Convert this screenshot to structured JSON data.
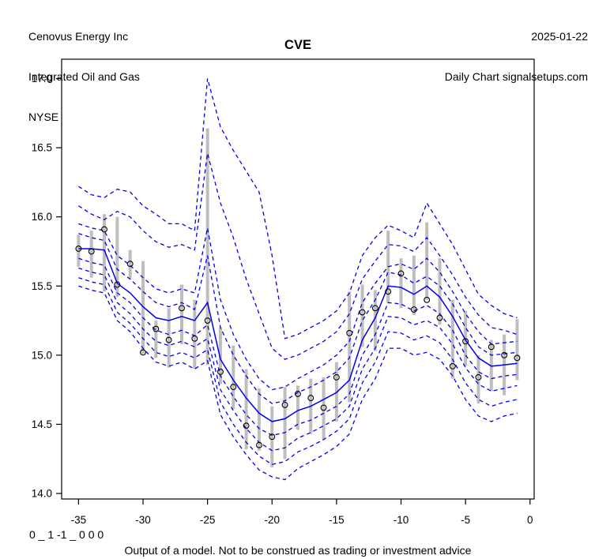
{
  "header": {
    "company": "Cenovus Energy Inc",
    "industry": "Integrated Oil and Gas",
    "exchange": "NYSE",
    "date": "2025-01-22",
    "source": "Daily Chart signalsetups.com"
  },
  "title": "CVE",
  "footer": {
    "signal_code": "0 _ 1 -1 _ 0 0 0",
    "disclaimer": "Output of a model. Not to be construed as trading or investment advice"
  },
  "colors": {
    "band_line": "#0000EE",
    "median_line": "#0000EE",
    "range_bar": "#BEBEBE",
    "point_stroke": "#000000",
    "axis": "#000000",
    "background": "#FFFFFF"
  },
  "chart_data": {
    "type": "line",
    "title": "CVE",
    "xlabel": "",
    "ylabel": "",
    "grid": false,
    "legend": "none",
    "xlim": [
      -36.31,
      0.32
    ],
    "ylim": [
      13.96,
      17.14
    ],
    "x_ticks": [
      {
        "value": -35,
        "label": "-35"
      },
      {
        "value": -30,
        "label": "-30"
      },
      {
        "value": -25,
        "label": "-25"
      },
      {
        "value": -20,
        "label": "-20"
      },
      {
        "value": -15,
        "label": "-15"
      },
      {
        "value": -10,
        "label": "-10"
      },
      {
        "value": -5,
        "label": "-5"
      },
      {
        "value": 0,
        "label": "0"
      }
    ],
    "y_ticks": [
      {
        "value": 14.0,
        "label": "14.0"
      },
      {
        "value": 14.5,
        "label": "14.5"
      },
      {
        "value": 15.0,
        "label": "15.0"
      },
      {
        "value": 15.5,
        "label": "15.5"
      },
      {
        "value": 16.0,
        "label": "16.0"
      },
      {
        "value": 16.5,
        "label": "16.5"
      },
      {
        "value": 17.0,
        "label": "17.0"
      }
    ],
    "x": [
      -35,
      -34,
      -33,
      -32,
      -31,
      -30,
      -29,
      -28,
      -27,
      -26,
      -25,
      -24,
      -23,
      -22,
      -21,
      -20,
      -19,
      -18,
      -17,
      -16,
      -15,
      -14,
      -13,
      -12,
      -11,
      -10,
      -9,
      -8,
      -7,
      -6,
      -5,
      -4,
      -3,
      -2,
      -1
    ],
    "series": [
      {
        "name": "upper-band-4",
        "style": "dashed",
        "values": [
          16.22,
          16.16,
          16.14,
          16.2,
          16.18,
          16.08,
          16.02,
          15.95,
          15.95,
          15.9,
          17.0,
          16.65,
          16.48,
          16.33,
          16.18,
          15.72,
          15.12,
          15.15,
          15.2,
          15.25,
          15.32,
          15.45,
          15.72,
          15.85,
          15.94,
          15.9,
          15.85,
          16.1,
          15.95,
          15.8,
          15.62,
          15.44,
          15.36,
          15.3,
          15.27
        ]
      },
      {
        "name": "upper-band-3",
        "style": "dashed",
        "values": [
          16.08,
          16.02,
          15.98,
          16.04,
          16.0,
          15.9,
          15.82,
          15.78,
          15.8,
          15.76,
          16.46,
          16.1,
          15.85,
          15.55,
          15.3,
          15.05,
          14.97,
          15.0,
          15.05,
          15.1,
          15.17,
          15.3,
          15.55,
          15.68,
          15.8,
          15.79,
          15.75,
          15.85,
          15.72,
          15.58,
          15.42,
          15.29,
          15.2,
          15.18,
          15.15
        ]
      },
      {
        "name": "upper-band-2",
        "style": "dashed",
        "values": [
          15.95,
          15.92,
          15.9,
          15.72,
          15.65,
          15.56,
          15.48,
          15.45,
          15.48,
          15.45,
          15.92,
          15.4,
          15.15,
          14.97,
          14.83,
          14.75,
          14.77,
          14.83,
          14.88,
          14.93,
          15.0,
          15.1,
          15.38,
          15.52,
          15.64,
          15.66,
          15.62,
          15.7,
          15.6,
          15.46,
          15.3,
          15.17,
          15.08,
          15.09,
          15.1
        ]
      },
      {
        "name": "upper-band-1",
        "style": "dashed",
        "values": [
          15.88,
          15.85,
          15.83,
          15.62,
          15.55,
          15.46,
          15.38,
          15.35,
          15.38,
          15.33,
          15.72,
          15.2,
          15.0,
          14.85,
          14.72,
          14.65,
          14.67,
          14.73,
          14.77,
          14.82,
          14.88,
          14.98,
          15.25,
          15.4,
          15.6,
          15.58,
          15.52,
          15.57,
          15.5,
          15.37,
          15.2,
          15.06,
          15.0,
          15.01,
          15.02
        ]
      },
      {
        "name": "median",
        "style": "solid",
        "values": [
          15.77,
          15.77,
          15.76,
          15.52,
          15.45,
          15.35,
          15.27,
          15.25,
          15.28,
          15.25,
          15.38,
          14.97,
          14.82,
          14.69,
          14.58,
          14.52,
          14.54,
          14.6,
          14.63,
          14.68,
          14.73,
          14.82,
          15.11,
          15.27,
          15.5,
          15.49,
          15.44,
          15.5,
          15.42,
          15.28,
          15.11,
          14.98,
          14.92,
          14.93,
          14.94
        ]
      },
      {
        "name": "lower-band-1",
        "style": "dashed",
        "values": [
          15.7,
          15.67,
          15.65,
          15.45,
          15.38,
          15.27,
          15.18,
          15.15,
          15.18,
          15.14,
          15.22,
          14.85,
          14.7,
          14.57,
          14.47,
          14.42,
          14.44,
          14.5,
          14.53,
          14.58,
          14.63,
          14.72,
          15.0,
          15.15,
          15.38,
          15.37,
          15.32,
          15.36,
          15.3,
          15.18,
          15.0,
          14.88,
          14.83,
          14.85,
          14.86
        ]
      },
      {
        "name": "lower-band-2",
        "style": "dashed",
        "values": [
          15.63,
          15.6,
          15.58,
          15.38,
          15.3,
          15.19,
          15.1,
          15.07,
          15.1,
          15.06,
          15.12,
          14.75,
          14.6,
          14.47,
          14.37,
          14.31,
          14.33,
          14.4,
          14.44,
          14.49,
          14.54,
          14.63,
          14.9,
          15.05,
          15.28,
          15.27,
          15.22,
          15.25,
          15.2,
          15.08,
          14.91,
          14.79,
          14.74,
          14.76,
          14.78
        ]
      },
      {
        "name": "lower-band-3",
        "style": "dashed",
        "values": [
          15.56,
          15.53,
          15.51,
          15.31,
          15.23,
          15.12,
          15.02,
          14.99,
          15.02,
          14.98,
          15.04,
          14.66,
          14.5,
          14.37,
          14.27,
          14.21,
          14.23,
          14.3,
          14.34,
          14.39,
          14.45,
          14.54,
          14.8,
          14.95,
          15.17,
          15.16,
          15.11,
          15.14,
          15.09,
          14.97,
          14.8,
          14.68,
          14.63,
          14.66,
          14.68
        ]
      },
      {
        "name": "lower-band-4",
        "style": "dashed",
        "values": [
          15.5,
          15.47,
          15.45,
          15.25,
          15.17,
          15.05,
          14.95,
          14.92,
          14.95,
          14.9,
          14.96,
          14.57,
          14.41,
          14.28,
          14.17,
          14.12,
          14.1,
          14.18,
          14.23,
          14.28,
          14.34,
          14.43,
          14.68,
          14.83,
          15.05,
          15.05,
          15.0,
          15.02,
          14.97,
          14.85,
          14.68,
          14.56,
          14.52,
          14.56,
          14.58
        ]
      }
    ],
    "close_points": [
      15.77,
      15.75,
      15.91,
      15.51,
      15.66,
      15.02,
      15.19,
      15.11,
      15.34,
      15.12,
      15.25,
      14.88,
      14.77,
      14.49,
      14.35,
      14.41,
      14.64,
      14.72,
      14.69,
      14.62,
      14.84,
      15.16,
      15.31,
      15.34,
      15.46,
      15.59,
      15.33,
      15.4,
      15.27,
      14.92,
      15.1,
      14.84,
      15.06,
      15.0,
      14.98
    ],
    "range_bars": {
      "high": [
        15.87,
        15.9,
        16.02,
        16.0,
        15.76,
        15.68,
        15.25,
        15.34,
        15.51,
        15.4,
        16.64,
        15.2,
        15.07,
        14.9,
        14.76,
        14.63,
        14.77,
        14.78,
        14.83,
        14.84,
        14.95,
        15.46,
        15.51,
        15.47,
        15.9,
        15.7,
        15.72,
        15.96,
        15.7,
        15.4,
        15.32,
        15.0,
        15.11,
        15.15,
        15.26
      ],
      "low": [
        15.64,
        15.56,
        15.46,
        15.42,
        15.55,
        15.01,
        14.98,
        14.91,
        15.08,
        14.9,
        14.93,
        14.79,
        14.61,
        14.32,
        14.31,
        14.19,
        14.25,
        14.46,
        14.43,
        14.39,
        14.52,
        14.66,
        15.06,
        15.03,
        15.38,
        15.34,
        15.29,
        15.4,
        15.22,
        14.83,
        14.92,
        14.65,
        14.74,
        14.71,
        14.82
      ]
    }
  }
}
